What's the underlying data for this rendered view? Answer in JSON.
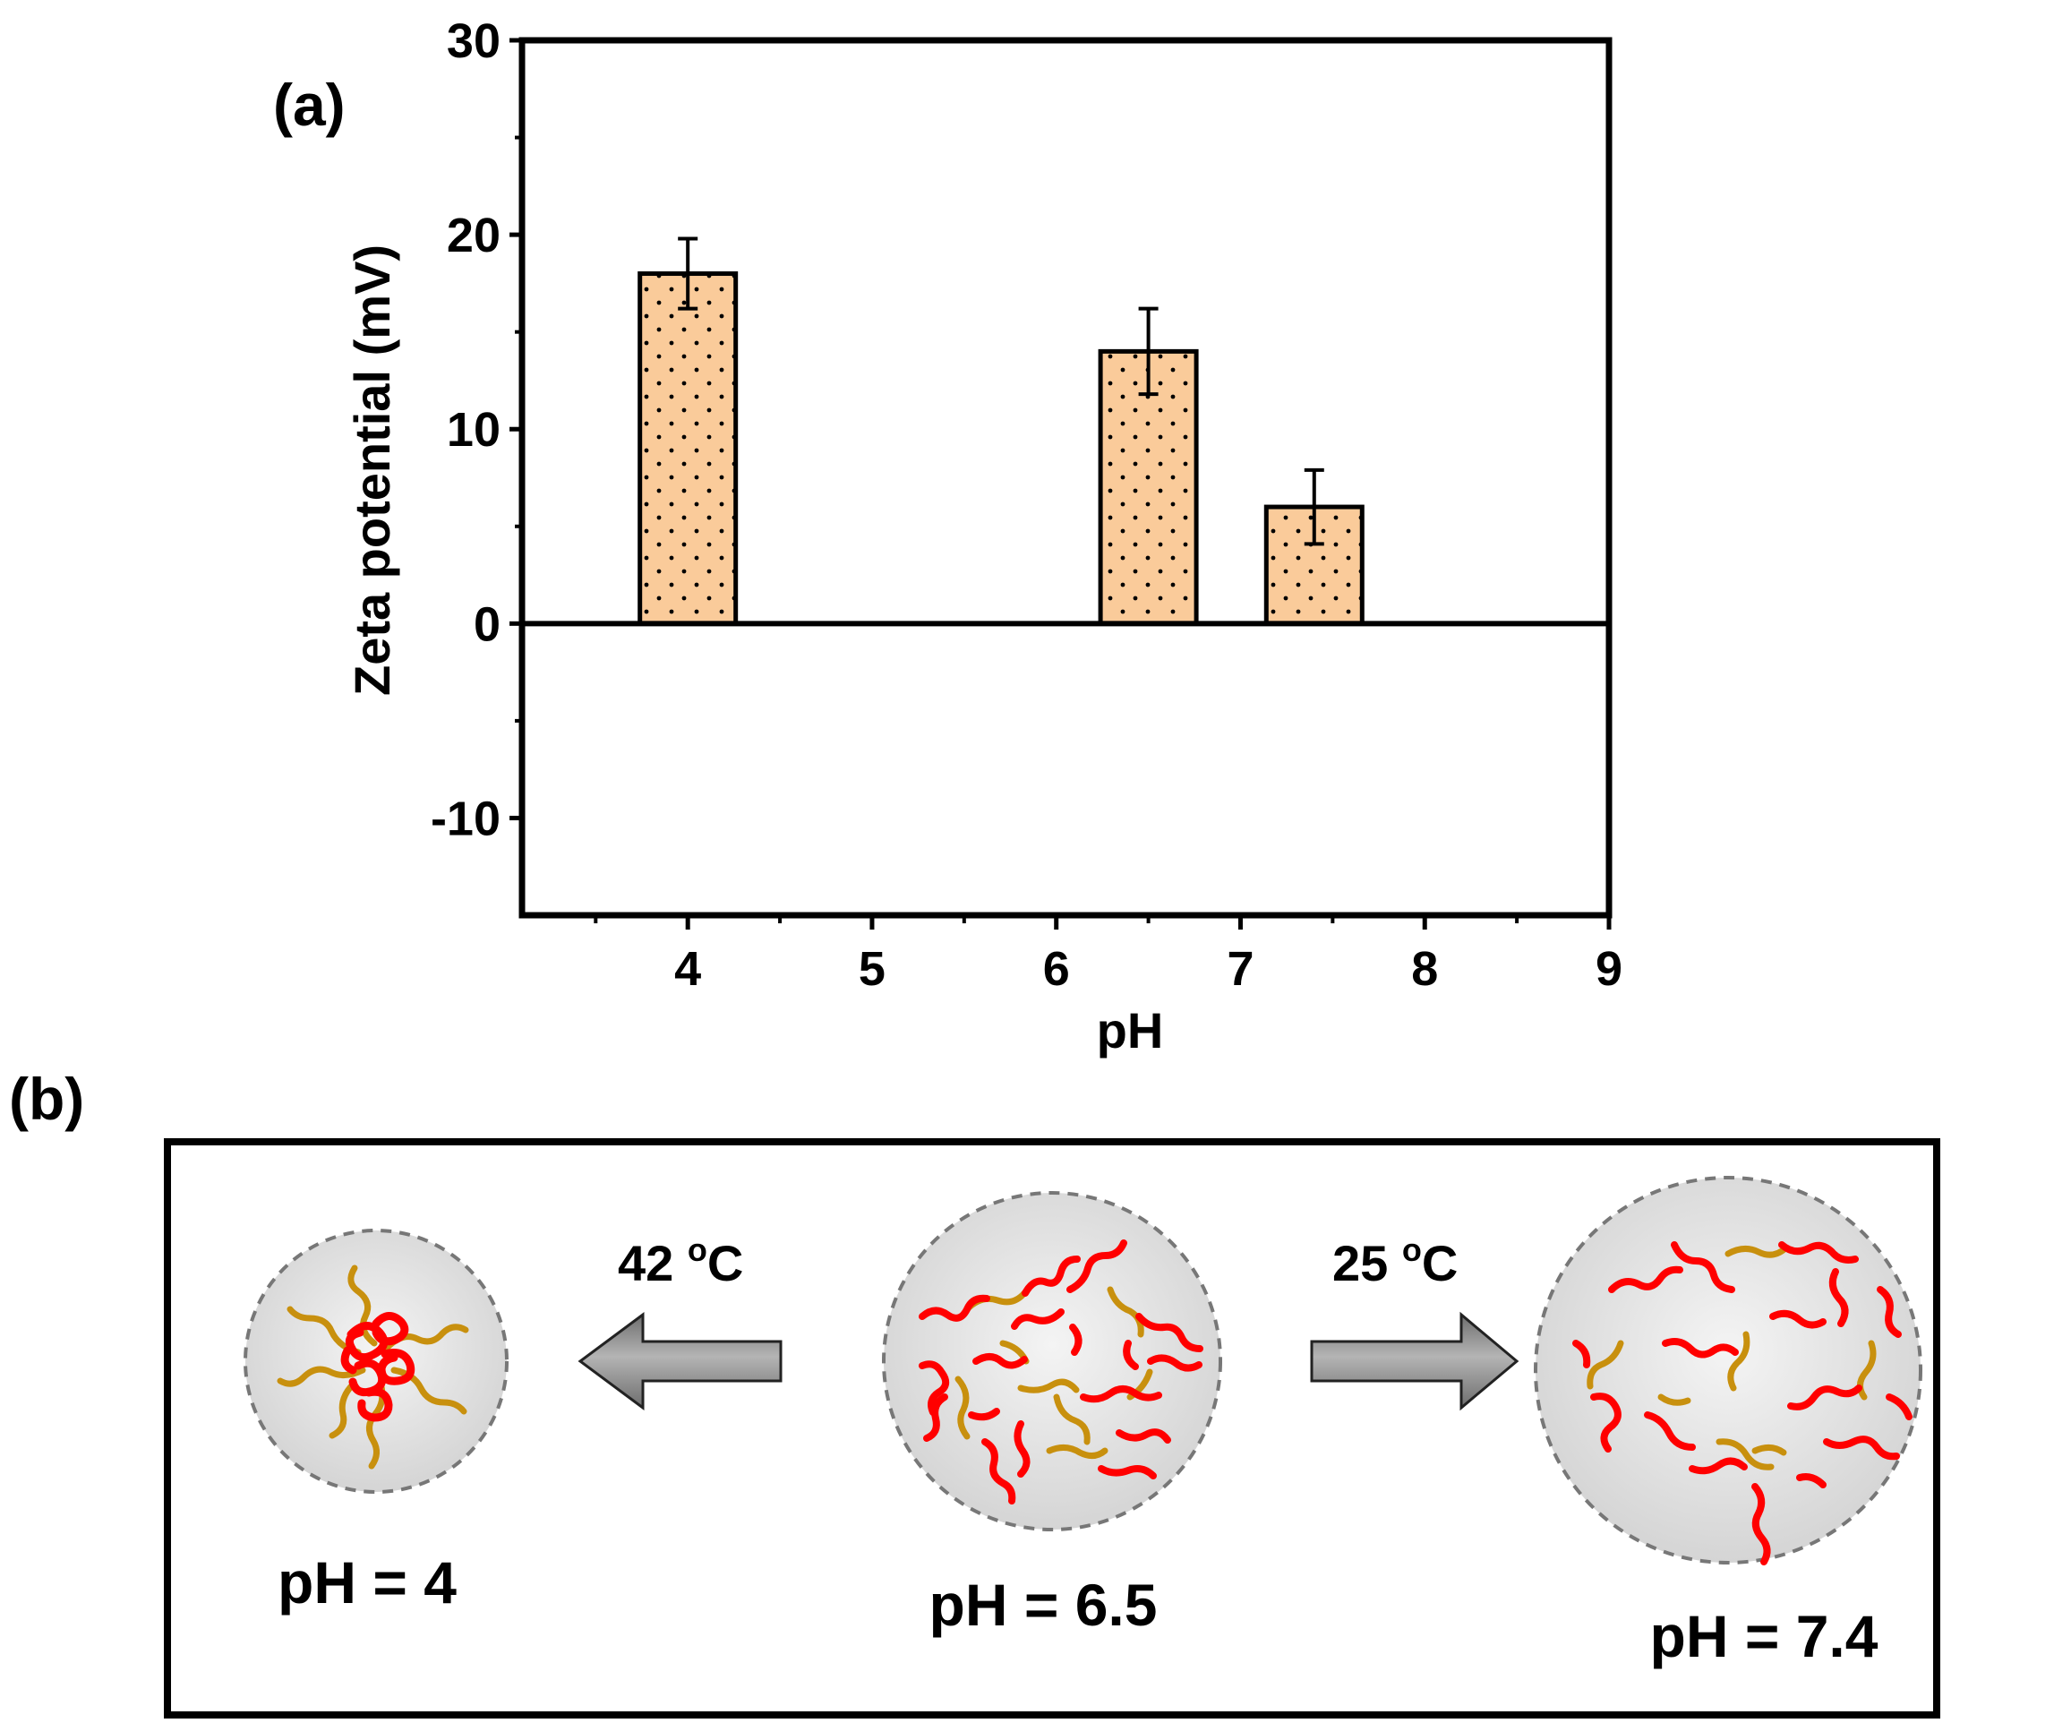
{
  "panel_a_label": "(a)",
  "panel_b_label": "(b)",
  "chart_data": {
    "type": "bar",
    "title": "",
    "xlabel": "pH",
    "ylabel": "Zeta potential (mV)",
    "xlim": [
      3.1,
      9
    ],
    "ylim": [
      -15,
      30
    ],
    "x_ticks": [
      4,
      5,
      6,
      7,
      8,
      9
    ],
    "y_ticks": [
      -10,
      0,
      10,
      20,
      30
    ],
    "bar_width": 0.52,
    "grid": false,
    "bars": [
      {
        "x": 4,
        "value": 18,
        "error": 1.8
      },
      {
        "x": 6.5,
        "value": 14,
        "error": 2.2
      },
      {
        "x": 7.4,
        "value": 6,
        "error": 1.9
      }
    ],
    "bar_fill": "#FACB9A",
    "bar_pattern": "dotted"
  },
  "scheme": {
    "states": [
      {
        "label": "pH = 4"
      },
      {
        "label": "pH = 6.5"
      },
      {
        "label": "pH = 7.4"
      }
    ],
    "arrow_left": {
      "temp": "42 ",
      "unit_sup": "o",
      "unit": "C"
    },
    "arrow_right": {
      "temp": "25 ",
      "unit_sup": "o",
      "unit": "C"
    },
    "colors": {
      "chain_red": "#FF0000",
      "chain_gold": "#C8900E",
      "sphere": "#DDDDDD",
      "arrow": "#8C8C8C"
    }
  }
}
